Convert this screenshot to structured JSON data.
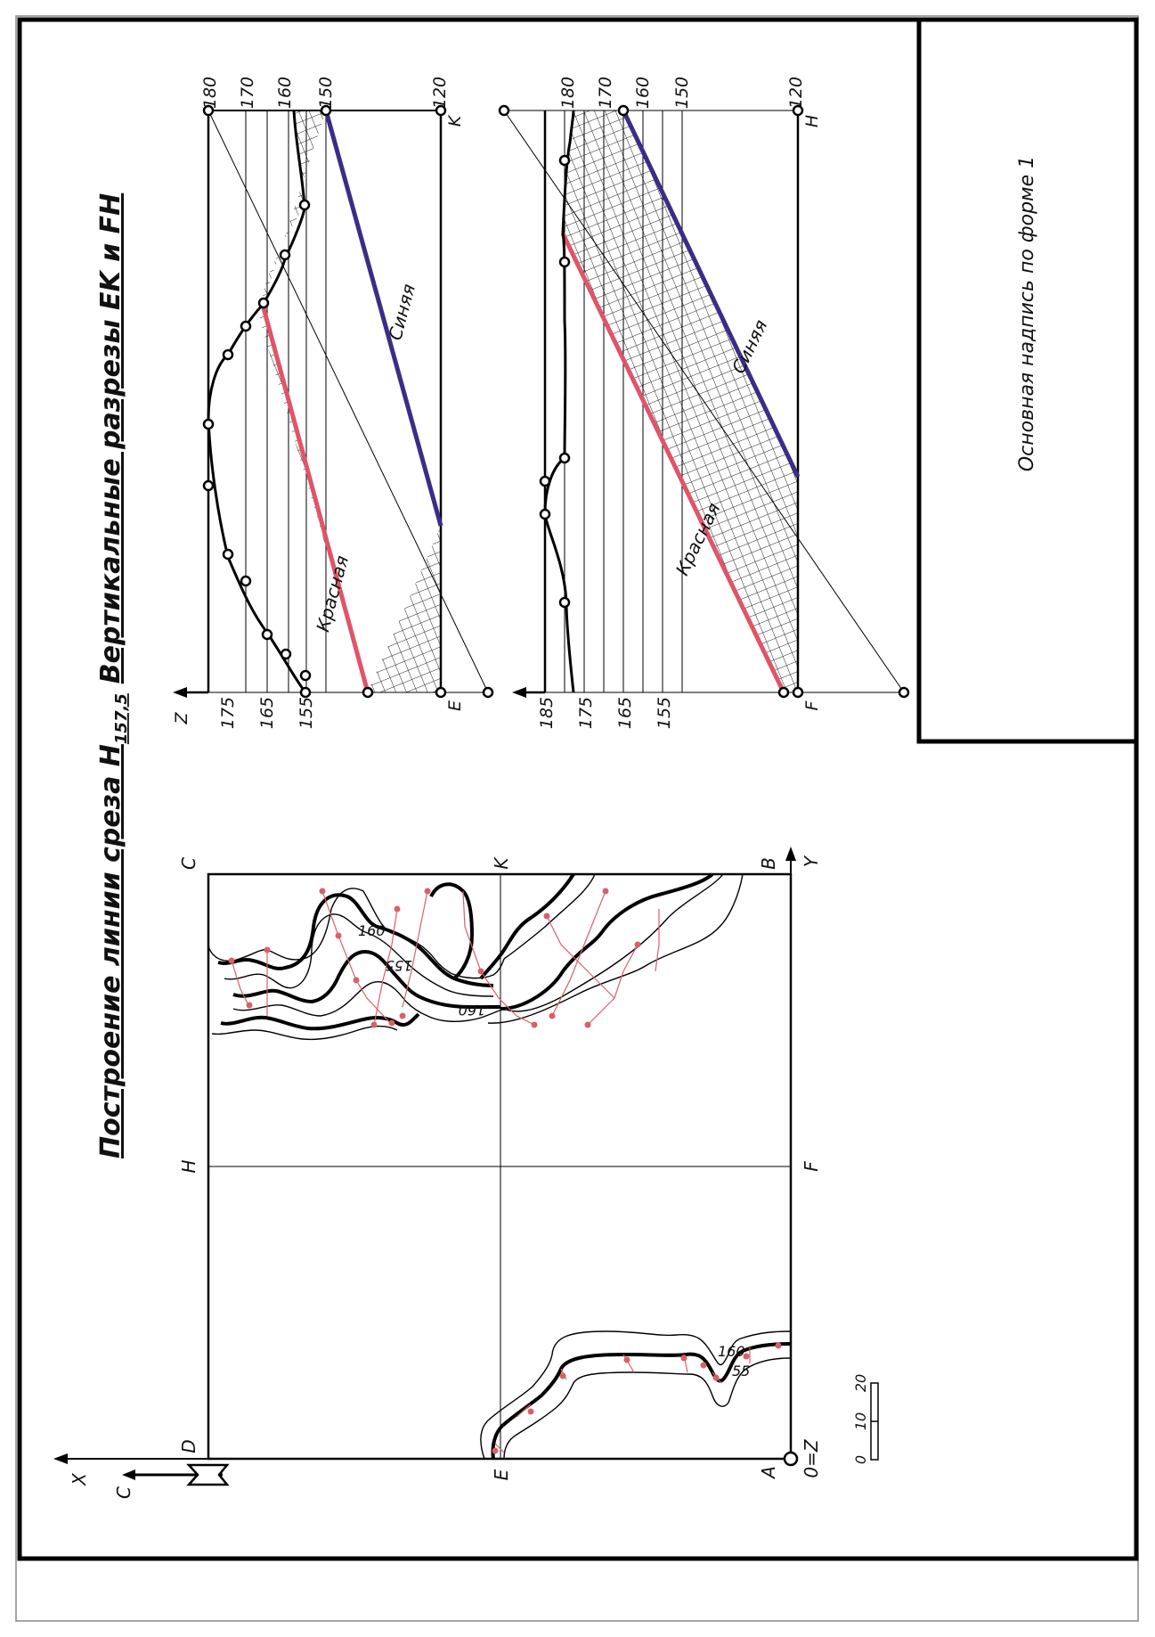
{
  "titles": {
    "plan_title": "Построение линии среза H",
    "plan_title_sub": "157,5",
    "sections_title": "Вертикальные разрезы EK и FH",
    "title_block": "Основная надпись по форме 1"
  },
  "plan": {
    "corner_labels": {
      "C": "C",
      "K": "K",
      "B": "B",
      "Y": "Y",
      "H": "H",
      "F": "F",
      "D": "D",
      "E": "E",
      "A": "A",
      "X": "X",
      "origin": "0=Z",
      "north": "С"
    },
    "contours": {
      "c160_upper": "160",
      "c155_upper": "155",
      "c160_upper_b": "160",
      "c160_lower": "160",
      "c155_lower": "55"
    },
    "scale": {
      "t0": "0",
      "t10": "10",
      "t20": "20"
    }
  },
  "section_ek": {
    "axis_left": {
      "z": "Z",
      "t175": "175",
      "t165": "165",
      "t155": "155",
      "e": "E"
    },
    "axis_right": {
      "t180": "180",
      "t170": "170",
      "t160": "160",
      "t150": "150",
      "t120": "120",
      "k": "K"
    },
    "red_label": "Красная",
    "blue_label": "Синяя"
  },
  "section_fh": {
    "axis_left": {
      "t185": "185",
      "t175": "175",
      "t165": "165",
      "t155": "155",
      "f": "F"
    },
    "axis_right": {
      "t180": "180",
      "t170": "170",
      "t160": "160",
      "t150": "150",
      "t120": "120",
      "h": "H"
    },
    "red_label": "Красная",
    "blue_label": "Синяя"
  },
  "colors": {
    "red": "#e05468",
    "blue": "#3b2d86",
    "ink": "#111111",
    "hint": "#d8606a"
  }
}
